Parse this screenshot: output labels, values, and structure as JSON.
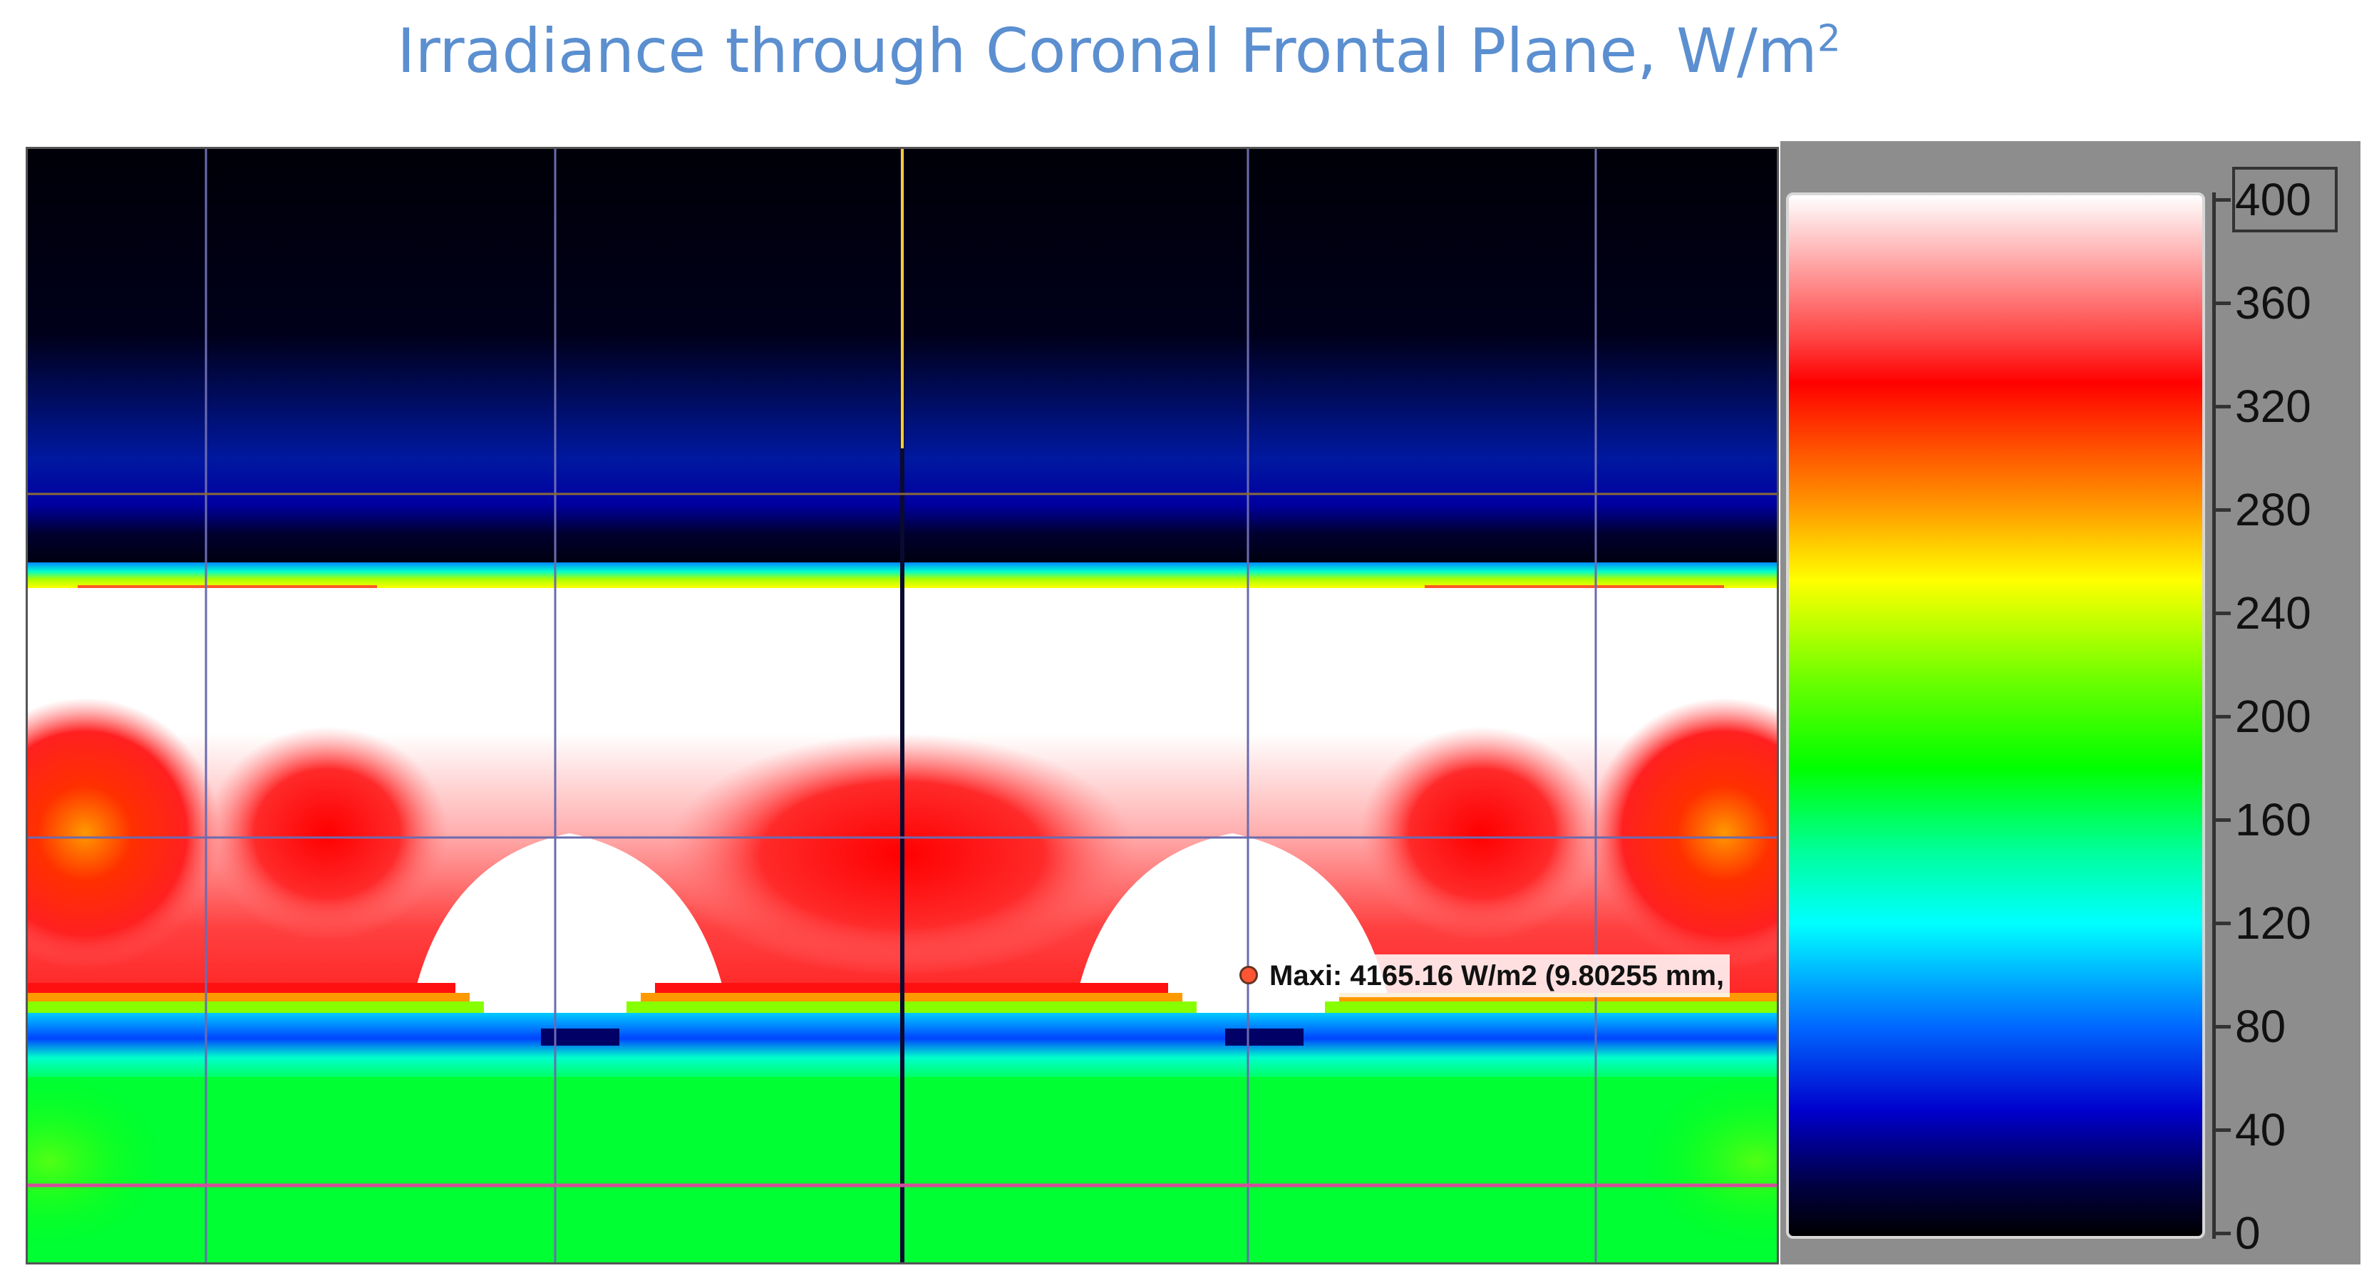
{
  "title": {
    "text": "Irradiance through Coronal Frontal Plane, W/m",
    "superscript": "2"
  },
  "annotation": {
    "text": "Maxi: 4165.16 W/m2 (9.80255 mm,",
    "marker_color": "#ff5533"
  },
  "colorbar": {
    "ticks": [
      "400",
      "360",
      "320",
      "280",
      "240",
      "200",
      "160",
      "120",
      "80",
      "40",
      "0"
    ],
    "range": [
      0,
      400
    ],
    "colors": [
      "#000000",
      "#0000cc",
      "#0066ff",
      "#00ffff",
      "#00ff00",
      "#ffff00",
      "#ff9900",
      "#ff0000",
      "#ffffff"
    ]
  },
  "grid_colors": {
    "vertical": "#6b6bb0",
    "horizontal": "#8a6a3a",
    "center": "#ffcc33",
    "bottom": "#d0509a"
  }
}
